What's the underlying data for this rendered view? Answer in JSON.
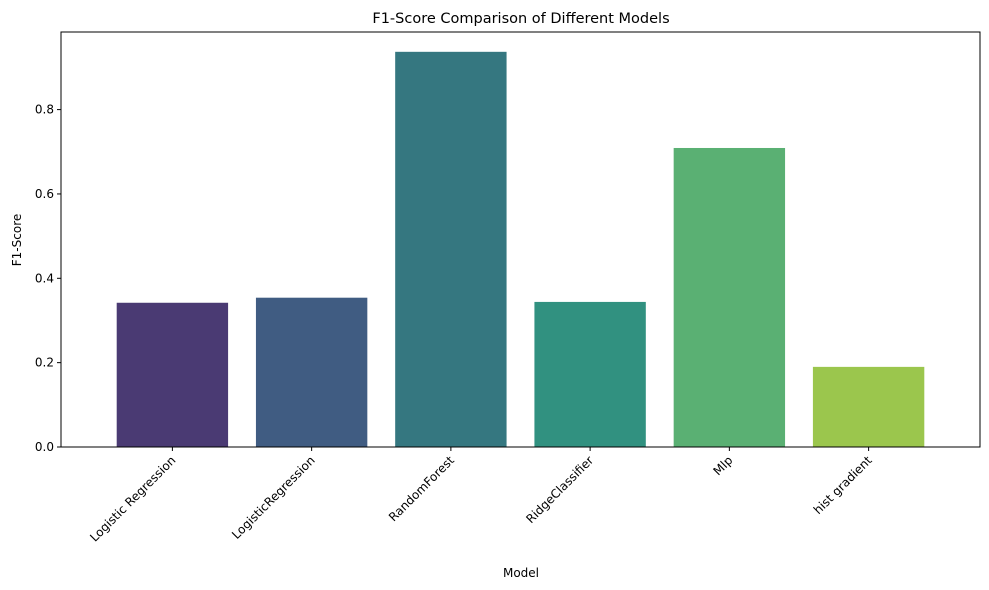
{
  "chart_data": {
    "type": "bar",
    "title": "F1-Score Comparison of Different Models",
    "xlabel": "Model",
    "ylabel": "F1-Score",
    "categories": [
      "Logistic Regression",
      "LogisticRegression",
      "RandomForest",
      "RidgeClassifier",
      "Mlp",
      "hist gradient"
    ],
    "values": [
      0.342,
      0.354,
      0.937,
      0.344,
      0.709,
      0.19
    ],
    "colors": [
      "#482878",
      "#3e4a89",
      "#31688e",
      "#26828e",
      "#35b779",
      "#8fd744"
    ],
    "bar_colors": [
      "#4a3a73",
      "#405c82",
      "#357780",
      "#319180",
      "#5ab073",
      "#9bc64d"
    ],
    "ylim": [
      0,
      0.984
    ],
    "yticks": [
      0.0,
      0.2,
      0.4,
      0.6,
      0.8
    ],
    "ytick_labels": [
      "0.0",
      "0.2",
      "0.4",
      "0.6",
      "0.8"
    ],
    "grid": false,
    "legend": "none"
  }
}
